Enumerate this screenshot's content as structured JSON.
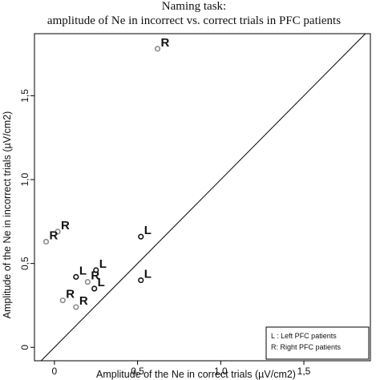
{
  "chart_data": {
    "type": "scatter",
    "title": "Naming task:",
    "subtitle": "amplitude of Ne in incorrect vs. correct trials in PFC patients",
    "xlabel": "Amplitude of the Ne in correct trials (µV/cm2)",
    "ylabel": "Amplitude of the Ne in incorrect trials (µV/cm2)",
    "xlim": [
      -0.12,
      1.9
    ],
    "ylim": [
      -0.08,
      1.87
    ],
    "x_ticks": [
      0,
      0.5,
      1.0,
      1.5
    ],
    "x_tick_labels": [
      "0",
      "0,5",
      "1,0",
      "1,5"
    ],
    "y_ticks": [
      0,
      0.5,
      1.0,
      1.5
    ],
    "y_tick_labels": [
      "0",
      "0,5",
      "1,0",
      "1,5"
    ],
    "reference_line": "y = x",
    "grid": false,
    "legend_position": "bottom-right",
    "legend": [
      {
        "key": "L",
        "text": "L : Left PFC patients"
      },
      {
        "key": "R",
        "text": "R: Right PFC patients"
      }
    ],
    "series": [
      {
        "label": "L",
        "color": "#111111",
        "points": [
          {
            "x": 0.52,
            "y": 0.66
          },
          {
            "x": 0.52,
            "y": 0.4
          },
          {
            "x": 0.13,
            "y": 0.42
          },
          {
            "x": 0.25,
            "y": 0.46
          },
          {
            "x": 0.24,
            "y": 0.35
          }
        ]
      },
      {
        "label": "R",
        "color": "#8a8a8a",
        "points": [
          {
            "x": 0.62,
            "y": 1.78
          },
          {
            "x": 0.02,
            "y": 0.69
          },
          {
            "x": -0.05,
            "y": 0.63
          },
          {
            "x": 0.05,
            "y": 0.28
          },
          {
            "x": 0.13,
            "y": 0.24
          },
          {
            "x": 0.2,
            "y": 0.39
          }
        ]
      }
    ]
  }
}
